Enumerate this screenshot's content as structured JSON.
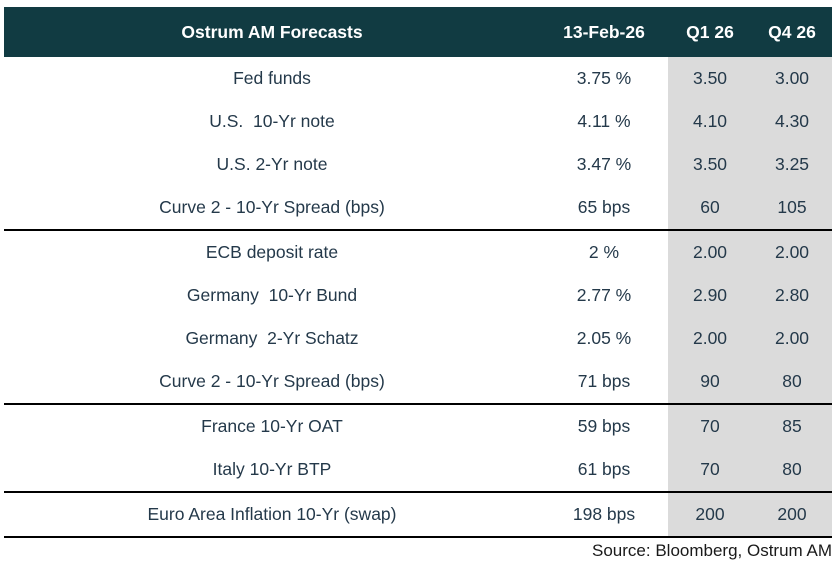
{
  "chart_data": {
    "type": "table",
    "title": "Ostrum AM Forecasts",
    "columns": [
      "13-Feb-26",
      "Q1 26",
      "Q4 26"
    ],
    "groups": [
      {
        "rows": [
          {
            "label": "Fed funds",
            "current": "3.75 %",
            "q1": "3.50",
            "q4": "3.00"
          },
          {
            "label": "U.S.  10-Yr note",
            "current": "4.11 %",
            "q1": "4.10",
            "q4": "4.30"
          },
          {
            "label": "U.S. 2-Yr note",
            "current": "3.47 %",
            "q1": "3.50",
            "q4": "3.25"
          },
          {
            "label": "Curve 2 - 10-Yr Spread (bps)",
            "current": "65 bps",
            "q1": "60",
            "q4": "105"
          }
        ]
      },
      {
        "rows": [
          {
            "label": "ECB deposit rate",
            "current": "2 %",
            "q1": "2.00",
            "q4": "2.00"
          },
          {
            "label": "Germany  10-Yr Bund",
            "current": "2.77 %",
            "q1": "2.90",
            "q4": "2.80"
          },
          {
            "label": "Germany  2-Yr Schatz",
            "current": "2.05 %",
            "q1": "2.00",
            "q4": "2.00"
          },
          {
            "label": "Curve 2 - 10-Yr Spread (bps)",
            "current": "71 bps",
            "q1": "90",
            "q4": "80"
          }
        ]
      },
      {
        "rows": [
          {
            "label": "France 10-Yr OAT",
            "current": "59 bps",
            "q1": "70",
            "q4": "85"
          },
          {
            "label": "Italy 10-Yr BTP",
            "current": "61 bps",
            "q1": "70",
            "q4": "80"
          }
        ]
      },
      {
        "rows": [
          {
            "label": "Euro Area Inflation 10-Yr (swap)",
            "current": "198 bps",
            "q1": "200",
            "q4": "200"
          }
        ]
      }
    ],
    "source": "Source: Bloomberg, Ostrum AM"
  },
  "colors": {
    "header_bg": "#113b42",
    "header_text": "#ffffff",
    "shaded_column_bg": "#dbdbdb",
    "body_text": "#24394a",
    "separator": "#000000"
  }
}
